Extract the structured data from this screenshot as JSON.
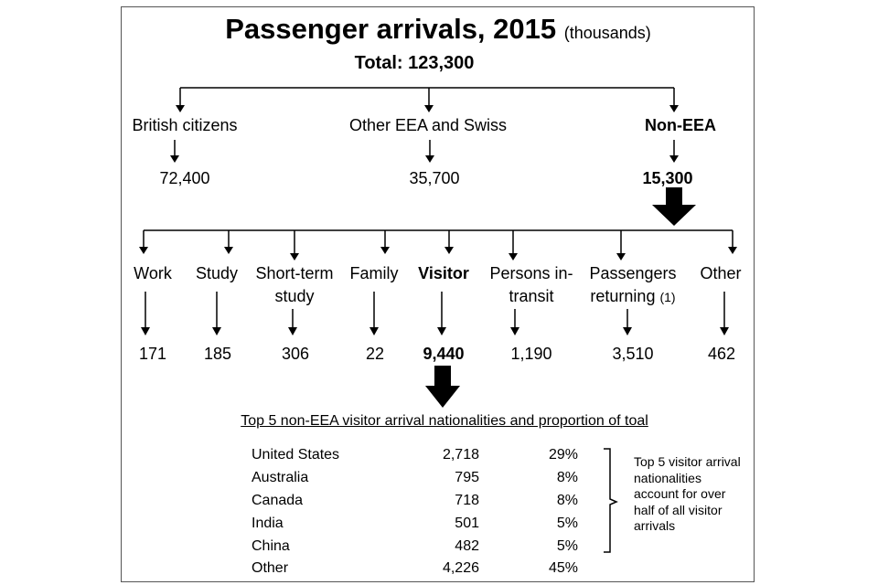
{
  "title": {
    "main": "Passenger arrivals, 2015",
    "unit": "(thousands)"
  },
  "total": "Total: 123,300",
  "groups": [
    {
      "label": "British citizens",
      "value": "72,400"
    },
    {
      "label": "Other EEA and Swiss",
      "value": "35,700"
    },
    {
      "label": "Non-EEA",
      "value": "15,300"
    }
  ],
  "categories": [
    {
      "label": "Work",
      "value": "171"
    },
    {
      "label": "Study",
      "value": "185"
    },
    {
      "label_line1": "Short-term",
      "label_line2": "study",
      "value": "306"
    },
    {
      "label": "Family",
      "value": "22"
    },
    {
      "label": "Visitor",
      "value": "9,440"
    },
    {
      "label_line1": "Persons in-",
      "label_line2": "transit",
      "value": "1,190"
    },
    {
      "label_line1": "Passengers",
      "label_line2": "returning",
      "note": "(1)",
      "value": "3,510"
    },
    {
      "label": "Other",
      "value": "462"
    }
  ],
  "nationalities": {
    "heading": "Top 5 non-EEA visitor arrival nationalities and proportion of toal",
    "rows": [
      {
        "country": "United States",
        "count": "2,718",
        "share": "29%"
      },
      {
        "country": "Australia",
        "count": "795",
        "share": "8%"
      },
      {
        "country": "Canada",
        "count": "718",
        "share": "8%"
      },
      {
        "country": "India",
        "count": "501",
        "share": "5%"
      },
      {
        "country": "China",
        "count": "482",
        "share": "5%"
      },
      {
        "country": "Other",
        "count": "4,226",
        "share": "45%"
      }
    ],
    "note": "Top 5 visitor arrival nationalities account for over half of all visitor arrivals"
  }
}
